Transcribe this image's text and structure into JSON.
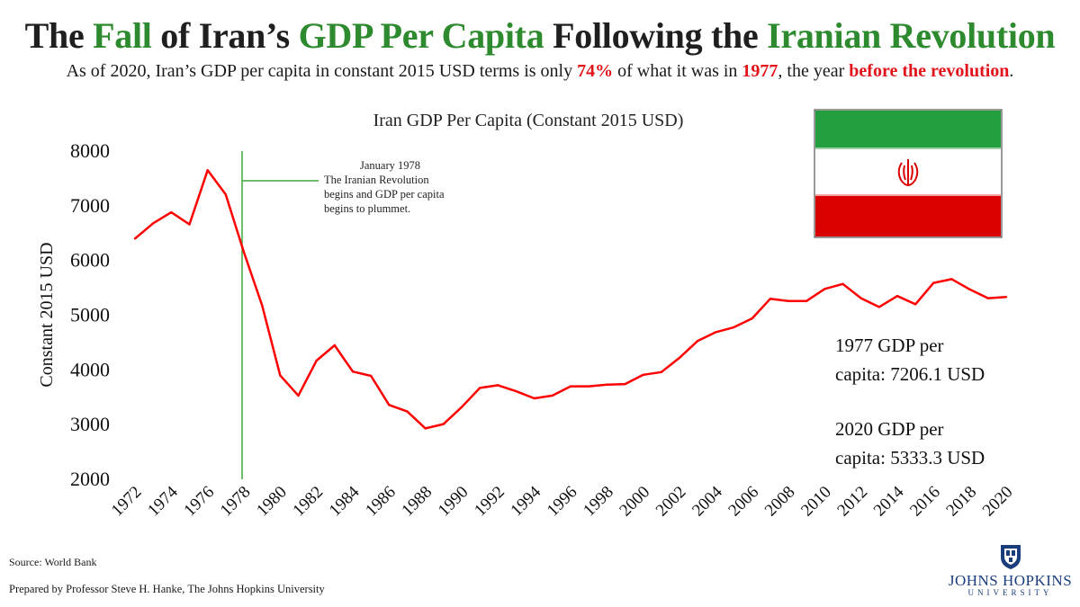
{
  "header": {
    "title_parts": [
      "The ",
      "Fall",
      " of Iran’s ",
      "GDP Per Capita",
      " Following the ",
      "Iranian Revolution"
    ],
    "subtitle_parts": [
      "As of 2020, Iran’s GDP per capita in constant 2015 USD terms is only ",
      "74%",
      " of what it was in ",
      "1977",
      ", the year ",
      "before the revolution",
      "."
    ]
  },
  "colors": {
    "title_green": "#2e8a2e",
    "highlight_red": "#e0141a",
    "series_red": "#ff0000",
    "annotation_green": "#3ea83e",
    "flag_green": "#239f40",
    "flag_red": "#da0000"
  },
  "chart_data": {
    "type": "line",
    "title": "Iran GDP Per Capita (Constant 2015 USD)",
    "xlabel": "",
    "ylabel": "Constant 2015 USD",
    "ylim": [
      2000,
      8000
    ],
    "yticks": [
      2000,
      3000,
      4000,
      5000,
      6000,
      7000,
      8000
    ],
    "xlim": [
      1972,
      2020
    ],
    "xticks": [
      1972,
      1974,
      1976,
      1978,
      1980,
      1982,
      1984,
      1986,
      1988,
      1990,
      1992,
      1994,
      1996,
      1998,
      2000,
      2002,
      2004,
      2006,
      2008,
      2010,
      2012,
      2014,
      2016,
      2018,
      2020
    ],
    "grid": false,
    "legend": "none",
    "series": [
      {
        "x": [
          1972,
          1973,
          1974,
          1975,
          1976,
          1977,
          1978,
          1979,
          1980,
          1981,
          1982,
          1983,
          1984,
          1985,
          1986,
          1987,
          1988,
          1989,
          1990,
          1991,
          1992,
          1993,
          1994,
          1995,
          1996,
          1997,
          1998,
          1999,
          2000,
          2001,
          2002,
          2003,
          2004,
          2005,
          2006,
          2007,
          2008,
          2009,
          2010,
          2011,
          2012,
          2013,
          2014,
          2015,
          2016,
          2017,
          2018,
          2019,
          2020
        ],
        "values": [
          6400,
          6680,
          6880,
          6660,
          7650,
          7206.1,
          6150,
          5180,
          3900,
          3530,
          4170,
          4450,
          3970,
          3890,
          3360,
          3240,
          2930,
          3010,
          3320,
          3670,
          3720,
          3610,
          3480,
          3530,
          3700,
          3700,
          3730,
          3740,
          3910,
          3960,
          4220,
          4530,
          4690,
          4780,
          4940,
          5300,
          5260,
          5260,
          5480,
          5570,
          5310,
          5150,
          5350,
          5200,
          5590,
          5660,
          5470,
          5310,
          5333.3
        ]
      }
    ],
    "event": {
      "year": 1978,
      "lines": [
        "January 1978",
        "The Iranian Revolution",
        "begins and GDP per capita",
        "begins to plummet."
      ]
    },
    "stats": [
      [
        "1977 GDP per",
        "capita:  7206.1 USD"
      ],
      [
        "2020 GDP per",
        "capita:  5333.3 USD"
      ]
    ]
  },
  "footer": {
    "source": "Source:  World Bank",
    "prepared": "Prepared by Professor Steve H. Hanke, The Johns Hopkins University",
    "logo_name": "JOHNS HOPKINS",
    "logo_sub": "UNIVERSITY"
  },
  "flag": {
    "emblem_icon": "iran-emblem-icon"
  }
}
